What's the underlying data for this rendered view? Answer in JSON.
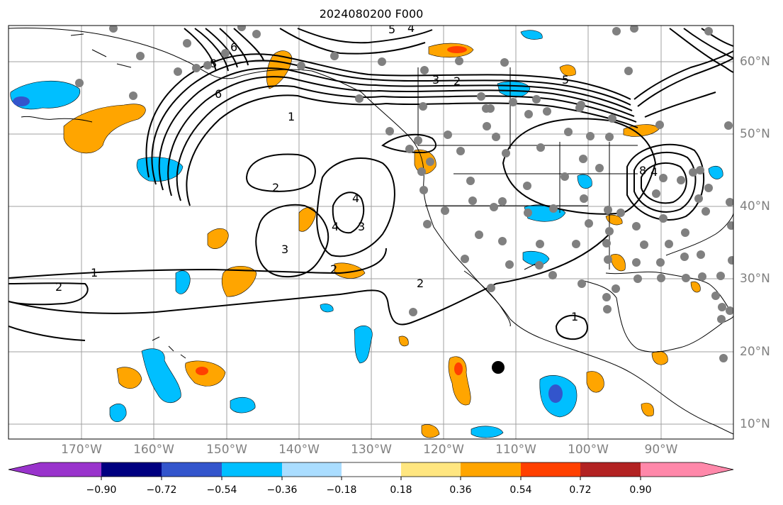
{
  "title": "2024080200 F000",
  "lon_labels": [
    "170°W",
    "160°W",
    "150°W",
    "140°W",
    "130°W",
    "120°W",
    "110°W",
    "100°W",
    "90°W"
  ],
  "lat_labels": [
    "60°N",
    "50°N",
    "40°N",
    "30°N",
    "20°N",
    "10°N"
  ],
  "colorbar": {
    "ticks": [
      "−0.90",
      "−0.72",
      "−0.54",
      "−0.36",
      "−0.18",
      "0.18",
      "0.36",
      "0.54",
      "0.72",
      "0.90"
    ],
    "colors": [
      "#9933cc",
      "#000080",
      "#3355cc",
      "#00bfff",
      "#aaddff",
      "#ffffff",
      "#ffe680",
      "#ffa500",
      "#ff4000",
      "#b22222",
      "#ff88aa"
    ]
  },
  "contour_labels": [
    "1",
    "2",
    "3",
    "4",
    "5",
    "6",
    "7",
    "8"
  ],
  "marker_color": "#808080"
}
